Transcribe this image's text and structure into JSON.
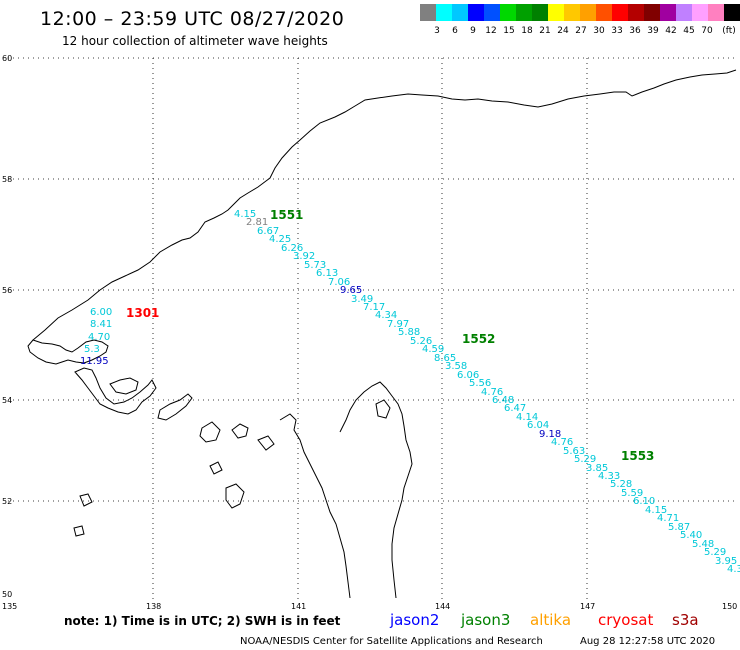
{
  "header": {
    "title": "12:00 – 23:59 UTC 08/27/2020",
    "subtitle": "12 hour collection of altimeter wave heights"
  },
  "scale": {
    "unit_label": "(ft)",
    "colors": [
      "#808080",
      "#00ffff",
      "#00c8ff",
      "#0000ff",
      "#0050ff",
      "#00d800",
      "#00a000",
      "#008000",
      "#ffff00",
      "#ffc800",
      "#ffa000",
      "#ff5000",
      "#ff0000",
      "#b40000",
      "#800000",
      "#a000a0",
      "#c080ff",
      "#ffa0ff",
      "#ff80c0",
      "#000000"
    ],
    "labels": [
      "3",
      "6",
      "9",
      "12",
      "15",
      "18",
      "21",
      "24",
      "27",
      "30",
      "33",
      "36",
      "39",
      "42",
      "45",
      "70"
    ]
  },
  "axes": {
    "lat_labels": [
      "60",
      "58",
      "56",
      "54",
      "52",
      "50"
    ],
    "lon_labels": [
      "135",
      "138",
      "141",
      "144",
      "147",
      "150"
    ]
  },
  "passes": [
    {
      "label": "1301",
      "color": "#ff0000"
    },
    {
      "label": "1551",
      "color": "#008000"
    },
    {
      "label": "1552",
      "color": "#008000"
    },
    {
      "label": "1553",
      "color": "#008000"
    }
  ],
  "observations": {
    "west": [
      {
        "value": "6.00",
        "color": "#00c8d8"
      },
      {
        "value": "8.41",
        "color": "#00c8d8"
      },
      {
        "value": "4.70",
        "color": "#00c8d8"
      },
      {
        "value": "5.3",
        "color": "#00c8d8"
      },
      {
        "value": "11.95",
        "color": "#0000c0"
      }
    ],
    "track": [
      {
        "value": "4.15",
        "color": "#00c8d8"
      },
      {
        "value": "2.81",
        "color": "#808080"
      },
      {
        "value": "6.67",
        "color": "#00c8d8"
      },
      {
        "value": "4.25",
        "color": "#00c8d8"
      },
      {
        "value": "6.26",
        "color": "#00c8d8"
      },
      {
        "value": "3.92",
        "color": "#00c8d8"
      },
      {
        "value": "5.73",
        "color": "#00c8d8"
      },
      {
        "value": "6.13",
        "color": "#00c8d8"
      },
      {
        "value": "7.06",
        "color": "#00c8d8"
      },
      {
        "value": "9.65",
        "color": "#0000c0"
      },
      {
        "value": "3.49",
        "color": "#00c8d8"
      },
      {
        "value": "7.17",
        "color": "#00c8d8"
      },
      {
        "value": "4.34",
        "color": "#00c8d8"
      },
      {
        "value": "7.97",
        "color": "#00c8d8"
      },
      {
        "value": "5.88",
        "color": "#00c8d8"
      },
      {
        "value": "5.26",
        "color": "#00c8d8"
      },
      {
        "value": "4.59",
        "color": "#00c8d8"
      },
      {
        "value": "8.65",
        "color": "#00c8d8"
      },
      {
        "value": "3.58",
        "color": "#00c8d8"
      },
      {
        "value": "6.06",
        "color": "#00c8d8"
      },
      {
        "value": "5.56",
        "color": "#00c8d8"
      },
      {
        "value": "4.76",
        "color": "#00c8d8"
      },
      {
        "value": "6.48",
        "color": "#00c8d8"
      },
      {
        "value": "6.47",
        "color": "#00c8d8"
      },
      {
        "value": "4.14",
        "color": "#00c8d8"
      },
      {
        "value": "6.04",
        "color": "#00c8d8"
      },
      {
        "value": "9.18",
        "color": "#0000c0"
      },
      {
        "value": "4.76",
        "color": "#00c8d8"
      },
      {
        "value": "5.63",
        "color": "#00c8d8"
      },
      {
        "value": "5.29",
        "color": "#00c8d8"
      },
      {
        "value": "3.85",
        "color": "#00c8d8"
      },
      {
        "value": "4.33",
        "color": "#00c8d8"
      },
      {
        "value": "5.28",
        "color": "#00c8d8"
      },
      {
        "value": "5.59",
        "color": "#00c8d8"
      },
      {
        "value": "6.10",
        "color": "#00c8d8"
      },
      {
        "value": "4.15",
        "color": "#00c8d8"
      },
      {
        "value": "4.71",
        "color": "#00c8d8"
      },
      {
        "value": "5.87",
        "color": "#00c8d8"
      },
      {
        "value": "5.40",
        "color": "#00c8d8"
      },
      {
        "value": "5.48",
        "color": "#00c8d8"
      },
      {
        "value": "5.29",
        "color": "#00c8d8"
      },
      {
        "value": "3.95",
        "color": "#00c8d8"
      },
      {
        "value": "4.3",
        "color": "#00c8d8"
      }
    ]
  },
  "footer": {
    "note": "note:  1) Time is in UTC;  2) SWH is in feet",
    "satellites": [
      {
        "label": "jason2",
        "color": "#0000ff"
      },
      {
        "label": "jason3",
        "color": "#008000"
      },
      {
        "label": "altika",
        "color": "#ffa000"
      },
      {
        "label": "cryosat",
        "color": "#ff0000"
      },
      {
        "label": "s3a",
        "color": "#a00000"
      }
    ],
    "credit": "NOAA/NESDIS Center for Satellite Applications and Research",
    "timestamp": "Aug 28 12:27:58 UTC 2020"
  }
}
